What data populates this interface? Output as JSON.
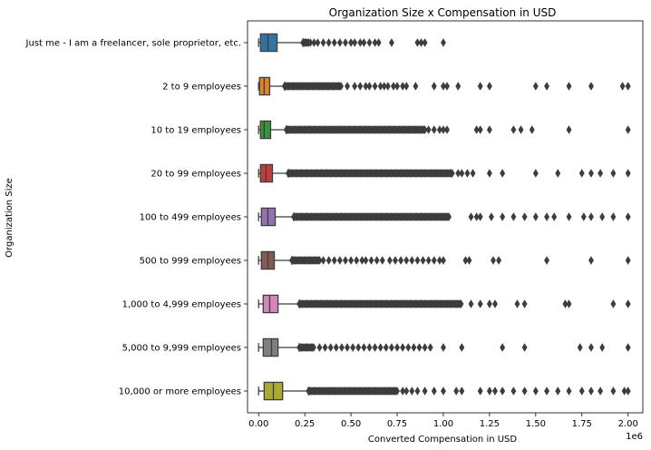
{
  "chart_data": {
    "type": "box",
    "orientation": "horizontal",
    "title": "Organization Size x Compensation in USD",
    "xlabel": "Converted Compensation in USD",
    "ylabel": "Organization Size",
    "x_scale_label": "1e6",
    "xlim": [
      -0.06,
      2.08
    ],
    "xticks": [
      0.0,
      0.25,
      0.5,
      0.75,
      1.0,
      1.25,
      1.5,
      1.75,
      2.0
    ],
    "xtick_labels": [
      "0.00",
      "0.25",
      "0.50",
      "0.75",
      "1.00",
      "1.25",
      "1.50",
      "1.75",
      "2.00"
    ],
    "grid": false,
    "categories": [
      "Just me - I am a freelancer, sole proprietor, etc.",
      "2 to 9 employees",
      "10 to 19 employees",
      "20 to 99 employees",
      "100 to 499 employees",
      "500 to 999 employees",
      "1,000 to 4,999 employees",
      "5,000 to 9,999 employees",
      "10,000 or more employees"
    ],
    "colors": [
      "#3274a1",
      "#e1812c",
      "#3a923a",
      "#c03d3e",
      "#9372b2",
      "#845b53",
      "#d684bd",
      "#7f7f7f",
      "#a9aa35"
    ],
    "boxes": [
      {
        "whislo": 0.0,
        "q1": 0.01,
        "med": 0.05,
        "q3": 0.1,
        "whishi": 0.24,
        "outlier_dense": [
          0.24,
          0.27
        ],
        "outliers": [
          0.28,
          0.3,
          0.32,
          0.35,
          0.38,
          0.41,
          0.44,
          0.47,
          0.5,
          0.52,
          0.55,
          0.57,
          0.6,
          0.63,
          0.65,
          0.72,
          0.86,
          0.88,
          0.9,
          1.0
        ]
      },
      {
        "whislo": 0.0,
        "q1": 0.005,
        "med": 0.03,
        "q3": 0.06,
        "whishi": 0.14,
        "outlier_dense": [
          0.14,
          0.45
        ],
        "outliers": [
          0.48,
          0.52,
          0.55,
          0.58,
          0.6,
          0.63,
          0.66,
          0.68,
          0.7,
          0.73,
          0.75,
          0.78,
          0.8,
          0.85,
          0.95,
          1.0,
          1.02,
          1.08,
          1.2,
          1.25,
          1.5,
          1.56,
          1.68,
          1.8,
          1.97,
          2.0
        ]
      },
      {
        "whislo": 0.0,
        "q1": 0.01,
        "med": 0.03,
        "q3": 0.065,
        "whishi": 0.15,
        "outlier_dense": [
          0.15,
          0.9
        ],
        "outliers": [
          0.92,
          0.95,
          0.98,
          1.0,
          1.02,
          1.18,
          1.2,
          1.25,
          1.38,
          1.42,
          1.48,
          1.68,
          2.0
        ]
      },
      {
        "whislo": 0.0,
        "q1": 0.01,
        "med": 0.04,
        "q3": 0.075,
        "whishi": 0.16,
        "outlier_dense": [
          0.16,
          1.05
        ],
        "outliers": [
          1.08,
          1.1,
          1.13,
          1.16,
          1.25,
          1.32,
          1.5,
          1.62,
          1.75,
          1.8,
          1.85,
          1.92,
          2.0
        ]
      },
      {
        "whislo": 0.0,
        "q1": 0.015,
        "med": 0.05,
        "q3": 0.09,
        "whishi": 0.19,
        "outlier_dense": [
          0.19,
          1.03
        ],
        "outliers": [
          1.15,
          1.18,
          1.2,
          1.26,
          1.32,
          1.38,
          1.44,
          1.5,
          1.56,
          1.6,
          1.68,
          1.76,
          1.8,
          1.86,
          1.92,
          2.0
        ]
      },
      {
        "whislo": 0.0,
        "q1": 0.015,
        "med": 0.05,
        "q3": 0.085,
        "whishi": 0.18,
        "outlier_dense": [
          0.18,
          0.33
        ],
        "outliers": [
          0.35,
          0.38,
          0.41,
          0.44,
          0.47,
          0.5,
          0.53,
          0.56,
          0.58,
          0.61,
          0.64,
          0.67,
          0.71,
          0.74,
          0.77,
          0.8,
          0.83,
          0.86,
          0.89,
          0.92,
          0.95,
          0.98,
          1.0,
          1.12,
          1.14,
          1.27,
          1.3,
          1.56,
          1.8,
          2.0
        ]
      },
      {
        "whislo": 0.0,
        "q1": 0.025,
        "med": 0.06,
        "q3": 0.105,
        "whishi": 0.22,
        "outlier_dense": [
          0.22,
          1.1
        ],
        "outliers": [
          1.15,
          1.2,
          1.25,
          1.28,
          1.4,
          1.44,
          1.66,
          1.68,
          1.92,
          2.0
        ]
      },
      {
        "whislo": 0.0,
        "q1": 0.025,
        "med": 0.07,
        "q3": 0.105,
        "whishi": 0.22,
        "outlier_dense": [
          0.22,
          0.3
        ],
        "outliers": [
          0.33,
          0.36,
          0.39,
          0.42,
          0.45,
          0.48,
          0.51,
          0.54,
          0.57,
          0.6,
          0.63,
          0.66,
          0.69,
          0.72,
          0.75,
          0.78,
          0.81,
          0.84,
          0.87,
          0.9,
          0.93,
          1.0,
          1.1,
          1.32,
          1.44,
          1.74,
          1.8,
          1.86,
          2.0
        ]
      },
      {
        "whislo": 0.0,
        "q1": 0.03,
        "med": 0.08,
        "q3": 0.13,
        "whishi": 0.27,
        "outlier_dense": [
          0.27,
          0.75
        ],
        "outliers": [
          0.78,
          0.8,
          0.83,
          0.86,
          0.9,
          0.95,
          1.0,
          1.07,
          1.1,
          1.2,
          1.25,
          1.28,
          1.32,
          1.38,
          1.44,
          1.5,
          1.56,
          1.62,
          1.68,
          1.75,
          1.8,
          1.85,
          1.92,
          1.98,
          2.0
        ]
      }
    ]
  }
}
